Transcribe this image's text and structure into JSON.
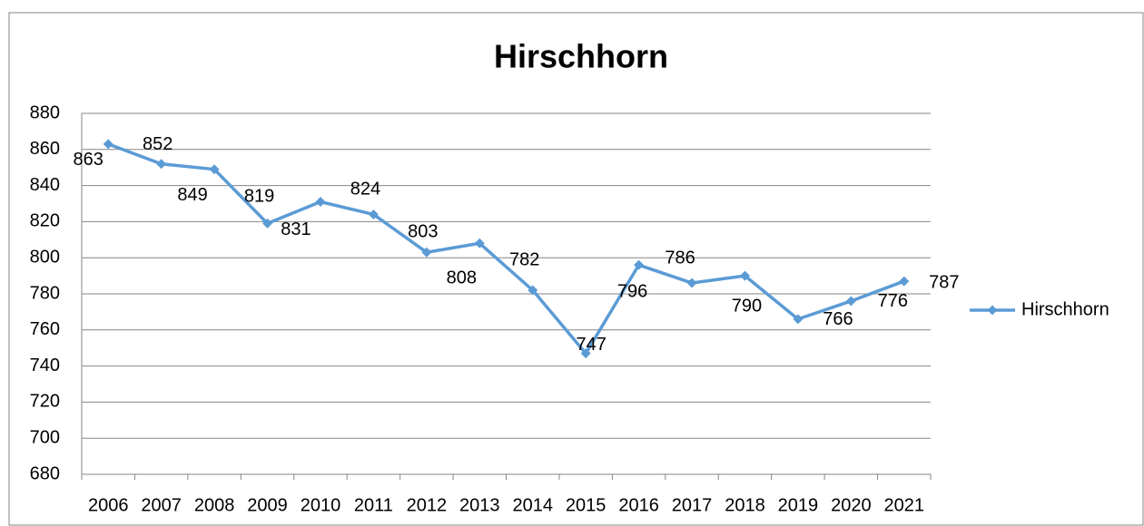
{
  "chart_data": {
    "type": "line",
    "title": "Hirschhorn",
    "categories": [
      "2006",
      "2007",
      "2008",
      "2009",
      "2010",
      "2011",
      "2012",
      "2013",
      "2014",
      "2015",
      "2016",
      "2017",
      "2018",
      "2019",
      "2020",
      "2021"
    ],
    "series": [
      {
        "name": "Hirschhorn",
        "color": "#5b9bd5",
        "values": [
          863,
          852,
          849,
          819,
          831,
          824,
          803,
          808,
          782,
          747,
          796,
          786,
          790,
          766,
          776,
          787
        ]
      }
    ],
    "ylim": [
      680,
      880
    ],
    "yticks": [
      680,
      700,
      720,
      740,
      760,
      780,
      800,
      820,
      840,
      860,
      880
    ],
    "grid": true,
    "legend": "right"
  }
}
